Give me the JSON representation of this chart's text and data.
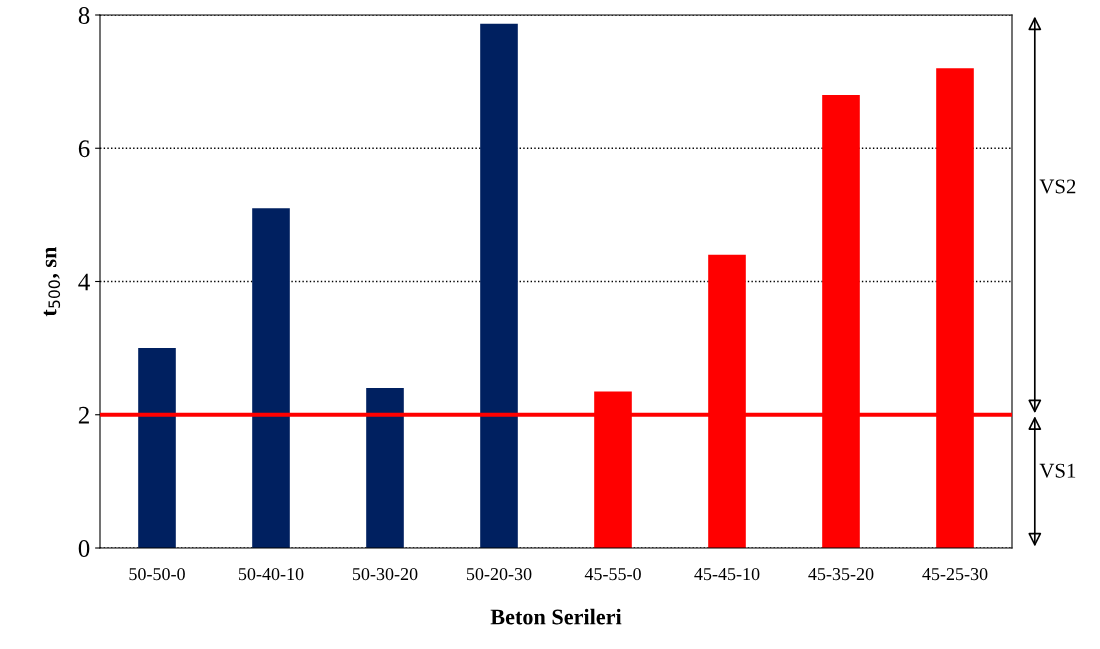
{
  "chart_data": {
    "type": "bar",
    "xlabel": "Beton Serileri",
    "ylabel": "t$_{500}$, sn",
    "categories": [
      "50-50-0",
      "50-40-10",
      "50-30-20",
      "50-20-30",
      "45-55-0",
      "45-45-10",
      "45-35-20",
      "45-25-30"
    ],
    "values": [
      3.0,
      5.1,
      2.4,
      7.87,
      2.35,
      4.4,
      6.8,
      7.2
    ],
    "colors": [
      "#002060",
      "#002060",
      "#002060",
      "#002060",
      "#ff0000",
      "#ff0000",
      "#ff0000",
      "#ff0000"
    ],
    "ylim": [
      0,
      8
    ],
    "yticks": [
      0,
      2,
      4,
      6,
      8
    ],
    "grid": "y",
    "ref_lines": [
      {
        "axis": "y",
        "value": 2,
        "color": "#ff0000",
        "line_style": "solid"
      }
    ],
    "annotations": [
      "VS2",
      "VS1"
    ]
  }
}
